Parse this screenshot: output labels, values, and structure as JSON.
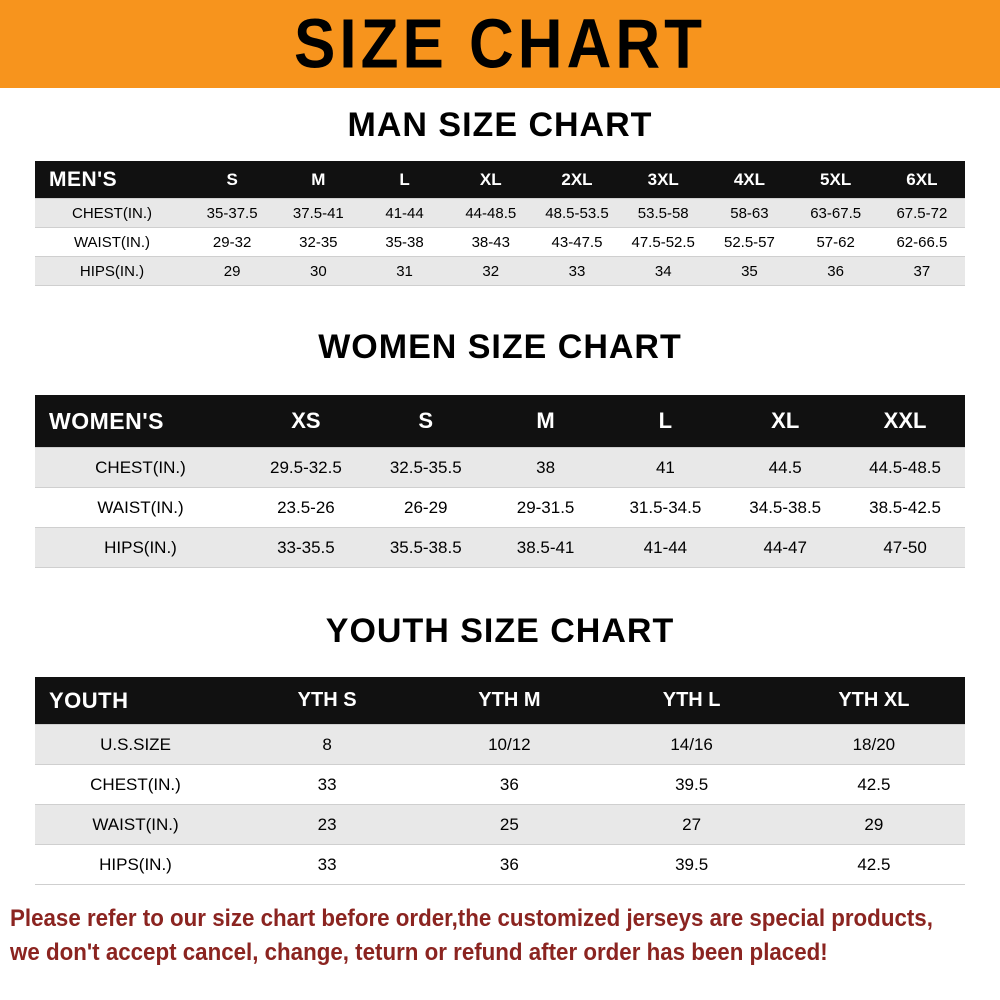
{
  "banner": {
    "title": "SIZE CHART",
    "bg_color": "#f7941d"
  },
  "chart_data": [
    {
      "type": "table",
      "title": "MAN SIZE CHART",
      "label": "MEN'S",
      "columns": [
        "S",
        "M",
        "L",
        "XL",
        "2XL",
        "3XL",
        "4XL",
        "5XL",
        "6XL"
      ],
      "rows": [
        {
          "label": "CHEST(IN.)",
          "values": [
            "35-37.5",
            "37.5-41",
            "41-44",
            "44-48.5",
            "48.5-53.5",
            "53.5-58",
            "58-63",
            "63-67.5",
            "67.5-72"
          ]
        },
        {
          "label": "WAIST(IN.)",
          "values": [
            "29-32",
            "32-35",
            "35-38",
            "38-43",
            "43-47.5",
            "47.5-52.5",
            "52.5-57",
            "57-62",
            "62-66.5"
          ]
        },
        {
          "label": "HIPS(IN.)",
          "values": [
            "29",
            "30",
            "31",
            "32",
            "33",
            "34",
            "35",
            "36",
            "37"
          ]
        }
      ]
    },
    {
      "type": "table",
      "title": "WOMEN SIZE CHART",
      "label": "WOMEN'S",
      "columns": [
        "XS",
        "S",
        "M",
        "L",
        "XL",
        "XXL"
      ],
      "rows": [
        {
          "label": "CHEST(IN.)",
          "values": [
            "29.5-32.5",
            "32.5-35.5",
            "38",
            "41",
            "44.5",
            "44.5-48.5"
          ]
        },
        {
          "label": "WAIST(IN.)",
          "values": [
            "23.5-26",
            "26-29",
            "29-31.5",
            "31.5-34.5",
            "34.5-38.5",
            "38.5-42.5"
          ]
        },
        {
          "label": "HIPS(IN.)",
          "values": [
            "33-35.5",
            "35.5-38.5",
            "38.5-41",
            "41-44",
            "44-47",
            "47-50"
          ]
        }
      ]
    },
    {
      "type": "table",
      "title": "YOUTH SIZE CHART",
      "label": "YOUTH",
      "columns": [
        "YTH S",
        "YTH M",
        "YTH L",
        "YTH XL"
      ],
      "rows": [
        {
          "label": "U.S.SIZE",
          "values": [
            "8",
            "10/12",
            "14/16",
            "18/20"
          ]
        },
        {
          "label": "CHEST(IN.)",
          "values": [
            "33",
            "36",
            "39.5",
            "42.5"
          ]
        },
        {
          "label": "WAIST(IN.)",
          "values": [
            "23",
            "25",
            "27",
            "29"
          ]
        },
        {
          "label": "HIPS(IN.)",
          "values": [
            "33",
            "36",
            "39.5",
            "42.5"
          ]
        }
      ]
    }
  ],
  "footer": {
    "line1": "Please refer to our size chart before order,the customized jerseys are special products,",
    "line2": "we don't accept cancel, change, teturn or refund after order has been placed!",
    "color": "#8b2420"
  }
}
